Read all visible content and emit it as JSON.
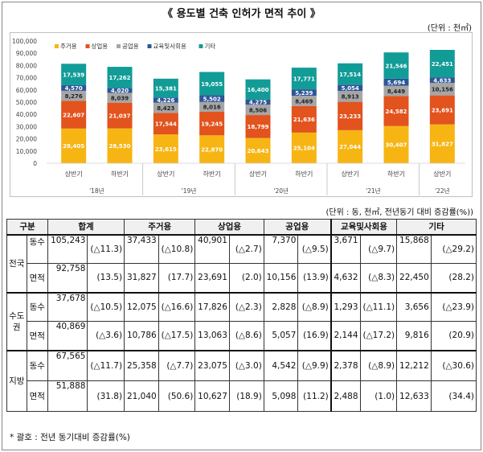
{
  "title": "《 용도별 건축 인허가 면적 추이 》",
  "chart_unit": "(단위 : 천㎡)",
  "chart_data": {
    "type": "bar",
    "stacked": true,
    "title": "용도별 건축 인허가 면적 추이",
    "ylim": [
      0,
      100000
    ],
    "yticks": [
      "0",
      "10,000",
      "20,000",
      "30,000",
      "40,000",
      "50,000",
      "60,000",
      "70,000",
      "80,000",
      "90,000",
      "100,000"
    ],
    "categories": [
      "상반기",
      "하반기",
      "상반기",
      "하반기",
      "상반기",
      "하반기",
      "상반기",
      "하반기",
      "상반기"
    ],
    "years": [
      {
        "label": "'18년",
        "start": 0,
        "end": 1
      },
      {
        "label": "'19년",
        "start": 2,
        "end": 3
      },
      {
        "label": "'20년",
        "start": 4,
        "end": 5
      },
      {
        "label": "'21년",
        "start": 6,
        "end": 7
      },
      {
        "label": "'22년",
        "start": 8,
        "end": 8
      }
    ],
    "series": [
      {
        "name": "주거용",
        "color": "#F7B514",
        "values": [
          28405,
          28530,
          23615,
          22870,
          20643,
          25104,
          27044,
          30407,
          31827
        ],
        "labels": [
          "28,405",
          "28,530",
          "23,615",
          "22,870",
          "20,643",
          "25,104",
          "27,044",
          "30,407",
          "31,827"
        ]
      },
      {
        "name": "상업용",
        "color": "#E2531E",
        "values": [
          22607,
          21037,
          17544,
          19245,
          18799,
          21636,
          23233,
          24582,
          23691
        ],
        "labels": [
          "22,607",
          "21,037",
          "17,544",
          "19,245",
          "18,799",
          "21,636",
          "23,233",
          "24,582",
          "23,691"
        ]
      },
      {
        "name": "공업용",
        "color": "#A6A6A6",
        "values": [
          8276,
          8039,
          8423,
          8016,
          8506,
          8469,
          8913,
          8449,
          10156
        ],
        "labels": [
          "8,276",
          "8,039",
          "8,423",
          "8,016",
          "8,506",
          "8,469",
          "8,913",
          "8,449",
          "10,156"
        ]
      },
      {
        "name": "교육및사회용",
        "color": "#2E5597",
        "values": [
          4570,
          4020,
          4226,
          5502,
          4275,
          5239,
          5054,
          5694,
          4633
        ],
        "labels": [
          "4,570",
          "4,020",
          "4,226",
          "5,502",
          "4,275",
          "5,239",
          "5,054",
          "5,694",
          "4,633"
        ]
      },
      {
        "name": "기타",
        "color": "#129C97",
        "values": [
          17539,
          17262,
          15381,
          19055,
          16400,
          17771,
          17514,
          21546,
          22451
        ],
        "labels": [
          "17,539",
          "17,262",
          "15,381",
          "19,055",
          "16,400",
          "17,771",
          "17,514",
          "21,546",
          "22,451"
        ]
      }
    ]
  },
  "table_unit": "(단위 : 동, 천㎡, 전년동기 대비 증감률(%))",
  "table": {
    "headers": {
      "col0": "구분",
      "total": "합계",
      "res": "주거용",
      "com": "상업용",
      "ind": "공업용",
      "edu": "교육및사회용",
      "etc": "기타"
    },
    "regions": [
      {
        "name": "전국",
        "rows": [
          {
            "metric": "동수",
            "total": "105,243",
            "total_r": "(△11.3)",
            "res": "37,433",
            "res_r": "(△10.8)",
            "com": "40,901",
            "com_r": "(△2.7)",
            "ind": "7,370",
            "ind_r": "(△9.5)",
            "edu": "3,671",
            "edu_r": "(△9.7)",
            "etc": "15,868",
            "etc_r": "(△29.2)"
          },
          {
            "metric": "면적",
            "total": "92,758",
            "total_r": "(13.5)",
            "res": "31,827",
            "res_r": "(17.7)",
            "com": "23,691",
            "com_r": "(2.0)",
            "ind": "10,156",
            "ind_r": "(13.9)",
            "edu": "4,632",
            "edu_r": "(△8.3)",
            "etc": "22,450",
            "etc_r": "(28.2)"
          }
        ]
      },
      {
        "name": "수도권",
        "name_l1": "수도",
        "name_l2": "권",
        "rows": [
          {
            "metric": "동수",
            "total": "37,678",
            "total_r": "(△10.5)",
            "res": "12,075",
            "res_r": "(△16.6)",
            "com": "17,826",
            "com_r": "(△2.3)",
            "ind": "2,828",
            "ind_r": "(△8.9)",
            "edu": "1,293",
            "edu_r": "(△11.1)",
            "etc": "3,656",
            "etc_r": "(△23.9)"
          },
          {
            "metric": "면적",
            "total": "40,869",
            "total_r": "(△3.6)",
            "res": "10,786",
            "res_r": "(△17.5)",
            "com": "13,063",
            "com_r": "(△8.6)",
            "ind": "5,057",
            "ind_r": "(16.9)",
            "edu": "2,144",
            "edu_r": "(△17.2)",
            "etc": "9,816",
            "etc_r": "(20.9)"
          }
        ]
      },
      {
        "name": "지방",
        "rows": [
          {
            "metric": "동수",
            "total": "67,565",
            "total_r": "(△11.7)",
            "res": "25,358",
            "res_r": "(△7.7)",
            "com": "23,075",
            "com_r": "(△3.0)",
            "ind": "4,542",
            "ind_r": "(△9.9)",
            "edu": "2,378",
            "edu_r": "(△8.9)",
            "etc": "12,212",
            "etc_r": "(△30.6)"
          },
          {
            "metric": "면적",
            "total": "51,888",
            "total_r": "(31.8)",
            "res": "21,040",
            "res_r": "(50.6)",
            "com": "10,627",
            "com_r": "(18.9)",
            "ind": "5,098",
            "ind_r": "(11.2)",
            "edu": "2,488",
            "edu_r": "(1.0)",
            "etc": "12,633",
            "etc_r": "(34.4)"
          }
        ]
      }
    ]
  },
  "note": "* 괄호 : 전년 동기대비 증감률(%)"
}
